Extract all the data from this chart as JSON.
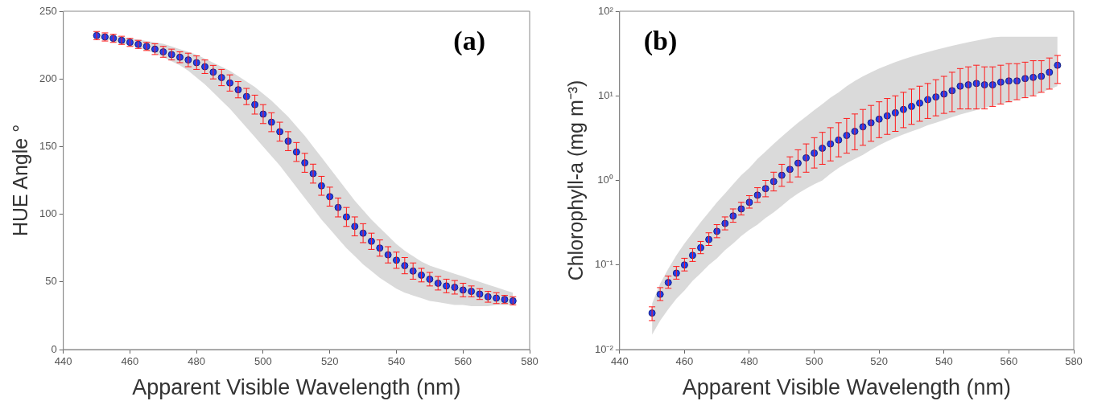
{
  "chart_data": [
    {
      "type": "scatter",
      "xlabel": "Apparent Visible Wavelength (nm)",
      "ylabel": "HUE Angle °",
      "annotations": [
        "(a)"
      ],
      "xlim": [
        440,
        580
      ],
      "xticks": [
        440,
        460,
        480,
        500,
        520,
        540,
        560,
        580
      ],
      "ylim": [
        0,
        250
      ],
      "yticks": [
        0,
        50,
        100,
        150,
        200,
        250
      ],
      "grid": false,
      "legend": false,
      "marker": "circle",
      "x": [
        450,
        452.5,
        455,
        457.5,
        460,
        462.5,
        465,
        467.5,
        470,
        472.5,
        475,
        477.5,
        480,
        482.5,
        485,
        487.5,
        490,
        492.5,
        495,
        497.5,
        500,
        502.5,
        505,
        507.5,
        510,
        512.5,
        515,
        517.5,
        520,
        522.5,
        525,
        527.5,
        530,
        532.5,
        535,
        537.5,
        540,
        542.5,
        545,
        547.5,
        550,
        552.5,
        555,
        557.5,
        560,
        562.5,
        565,
        567.5,
        570,
        572.5,
        575
      ],
      "series": [
        {
          "color": "#1f3df2",
          "values": [
            232,
            231,
            230,
            228.5,
            227,
            225.5,
            224,
            222,
            220,
            218,
            216,
            214,
            212,
            209,
            205,
            201,
            197,
            192,
            187,
            181,
            174,
            168,
            161,
            154,
            146,
            138,
            130,
            121,
            113,
            105,
            98,
            91,
            86,
            80,
            75,
            70,
            66,
            62,
            58,
            55,
            52,
            49,
            47,
            46,
            44,
            43,
            41,
            39,
            38,
            37,
            36
          ],
          "errors": [
            3,
            3,
            3,
            3,
            3,
            3,
            3,
            4,
            4,
            4,
            4,
            5,
            5,
            5,
            5,
            6,
            6,
            6,
            6,
            7,
            7,
            7,
            7,
            7,
            7,
            7,
            7,
            7,
            7,
            7,
            7,
            7,
            7,
            6,
            6,
            6,
            6,
            6,
            6,
            5,
            5,
            5,
            5,
            5,
            5,
            4,
            4,
            4,
            4,
            3,
            3
          ],
          "lower": [
            230,
            229,
            228,
            226,
            225,
            223,
            221,
            219,
            216,
            213,
            210,
            206,
            201,
            196,
            190,
            184,
            178,
            171,
            164,
            157,
            150,
            143,
            136,
            128,
            120,
            112,
            104,
            96,
            89,
            82,
            75,
            69,
            63,
            58,
            53,
            49,
            45,
            42,
            40,
            38,
            36,
            35,
            34,
            33,
            33,
            32,
            32,
            32,
            33,
            33,
            33
          ],
          "upper": [
            234,
            233,
            232,
            231,
            230,
            229,
            228,
            227,
            226,
            224,
            222,
            220,
            218,
            215,
            212,
            209,
            206,
            202,
            198,
            194,
            189,
            184,
            178,
            172,
            165,
            158,
            150,
            142,
            134,
            126,
            118,
            110,
            103,
            96,
            90,
            84,
            78,
            73,
            69,
            65,
            62,
            60,
            58,
            56,
            54,
            52,
            50,
            48,
            46,
            44,
            42
          ]
        }
      ]
    },
    {
      "type": "scatter",
      "xlabel": "Apparent Visible Wavelength (nm)",
      "ylabel": "Chlorophyll-a (mg m⁻³)",
      "annotations": [
        "(b)"
      ],
      "log": "y",
      "xlim": [
        440,
        580
      ],
      "xticks": [
        440,
        460,
        480,
        500,
        520,
        540,
        560,
        580
      ],
      "ylim": [
        0.01,
        100
      ],
      "yticks": [
        {
          "value": 0.01,
          "label": "10⁻²"
        },
        {
          "value": 0.1,
          "label": "10⁻¹"
        },
        {
          "value": 1,
          "label": "10⁰"
        },
        {
          "value": 10,
          "label": "10¹"
        },
        {
          "value": 100,
          "label": "10²"
        }
      ],
      "grid": false,
      "legend": false,
      "marker": "circle",
      "x": [
        450,
        452.5,
        455,
        457.5,
        460,
        462.5,
        465,
        467.5,
        470,
        472.5,
        475,
        477.5,
        480,
        482.5,
        485,
        487.5,
        490,
        492.5,
        495,
        497.5,
        500,
        502.5,
        505,
        507.5,
        510,
        512.5,
        515,
        517.5,
        520,
        522.5,
        525,
        527.5,
        530,
        532.5,
        535,
        537.5,
        540,
        542.5,
        545,
        547.5,
        550,
        552.5,
        555,
        557.5,
        560,
        562.5,
        565,
        567.5,
        570,
        572.5,
        575
      ],
      "series": [
        {
          "color": "#1f3df2",
          "values": [
            0.027,
            0.045,
            0.062,
            0.08,
            0.1,
            0.13,
            0.16,
            0.2,
            0.25,
            0.31,
            0.38,
            0.46,
            0.55,
            0.67,
            0.8,
            0.97,
            1.15,
            1.35,
            1.6,
            1.85,
            2.1,
            2.4,
            2.7,
            3.0,
            3.4,
            3.8,
            4.3,
            4.8,
            5.3,
            5.8,
            6.3,
            6.9,
            7.5,
            8.2,
            9,
            9.7,
            10.5,
            11.5,
            13,
            13.5,
            14,
            13.5,
            13.5,
            14.5,
            15,
            15,
            16,
            16.5,
            17,
            19,
            23
          ],
          "errors": [
            [
              0.022,
              0.032
            ],
            [
              0.038,
              0.054
            ],
            [
              0.053,
              0.074
            ],
            [
              0.068,
              0.096
            ],
            [
              0.085,
              0.12
            ],
            [
              0.11,
              0.156
            ],
            [
              0.136,
              0.19
            ],
            [
              0.17,
              0.24
            ],
            [
              0.21,
              0.3
            ],
            [
              0.26,
              0.37
            ],
            [
              0.32,
              0.46
            ],
            [
              0.39,
              0.55
            ],
            [
              0.47,
              0.66
            ],
            [
              0.55,
              0.82
            ],
            [
              0.64,
              1.0
            ],
            [
              0.75,
              1.25
            ],
            [
              0.85,
              1.55
            ],
            [
              0.95,
              1.9
            ],
            [
              1.1,
              2.3
            ],
            [
              1.25,
              2.7
            ],
            [
              1.4,
              3.2
            ],
            [
              1.55,
              3.7
            ],
            [
              1.7,
              4.2
            ],
            [
              1.9,
              4.8
            ],
            [
              2.1,
              5.4
            ],
            [
              2.3,
              6.1
            ],
            [
              2.6,
              6.9
            ],
            [
              2.9,
              7.7
            ],
            [
              3.2,
              8.5
            ],
            [
              3.5,
              9.3
            ],
            [
              3.8,
              10
            ],
            [
              4.2,
              11
            ],
            [
              4.6,
              12
            ],
            [
              5,
              13
            ],
            [
              5.4,
              14
            ],
            [
              5.8,
              15.5
            ],
            [
              6.2,
              17
            ],
            [
              6.5,
              19
            ],
            [
              7,
              21
            ],
            [
              7,
              22
            ],
            [
              7,
              23
            ],
            [
              7,
              22
            ],
            [
              7.5,
              22
            ],
            [
              8,
              23
            ],
            [
              8.5,
              24
            ],
            [
              9,
              24
            ],
            [
              9.5,
              25
            ],
            [
              10,
              26
            ],
            [
              11,
              26
            ],
            [
              12,
              28
            ],
            [
              14,
              30
            ]
          ],
          "lower": [
            0.015,
            0.022,
            0.03,
            0.04,
            0.05,
            0.065,
            0.08,
            0.1,
            0.12,
            0.15,
            0.18,
            0.22,
            0.26,
            0.3,
            0.36,
            0.42,
            0.5,
            0.6,
            0.7,
            0.8,
            0.9,
            1.0,
            1.2,
            1.4,
            1.6,
            1.8,
            2,
            2.3,
            2.6,
            2.9,
            3.2,
            3.5,
            3.8,
            4.1,
            4.5,
            4.8,
            5.2,
            5.6,
            6,
            6.4,
            6.8,
            7.2,
            7.6,
            8,
            8.5,
            9,
            9.5,
            10,
            11,
            12,
            13
          ],
          "upper": [
            0.035,
            0.06,
            0.09,
            0.13,
            0.18,
            0.24,
            0.32,
            0.42,
            0.55,
            0.7,
            0.9,
            1.15,
            1.4,
            1.8,
            2.2,
            2.7,
            3.3,
            4,
            4.8,
            5.7,
            6.8,
            8,
            9.5,
            11,
            13,
            15,
            17,
            19,
            21,
            23,
            25,
            27,
            29,
            31,
            33,
            35,
            37,
            39,
            41,
            43,
            45,
            47,
            49,
            50,
            50,
            50,
            50,
            50,
            50,
            50,
            50
          ]
        }
      ]
    }
  ]
}
